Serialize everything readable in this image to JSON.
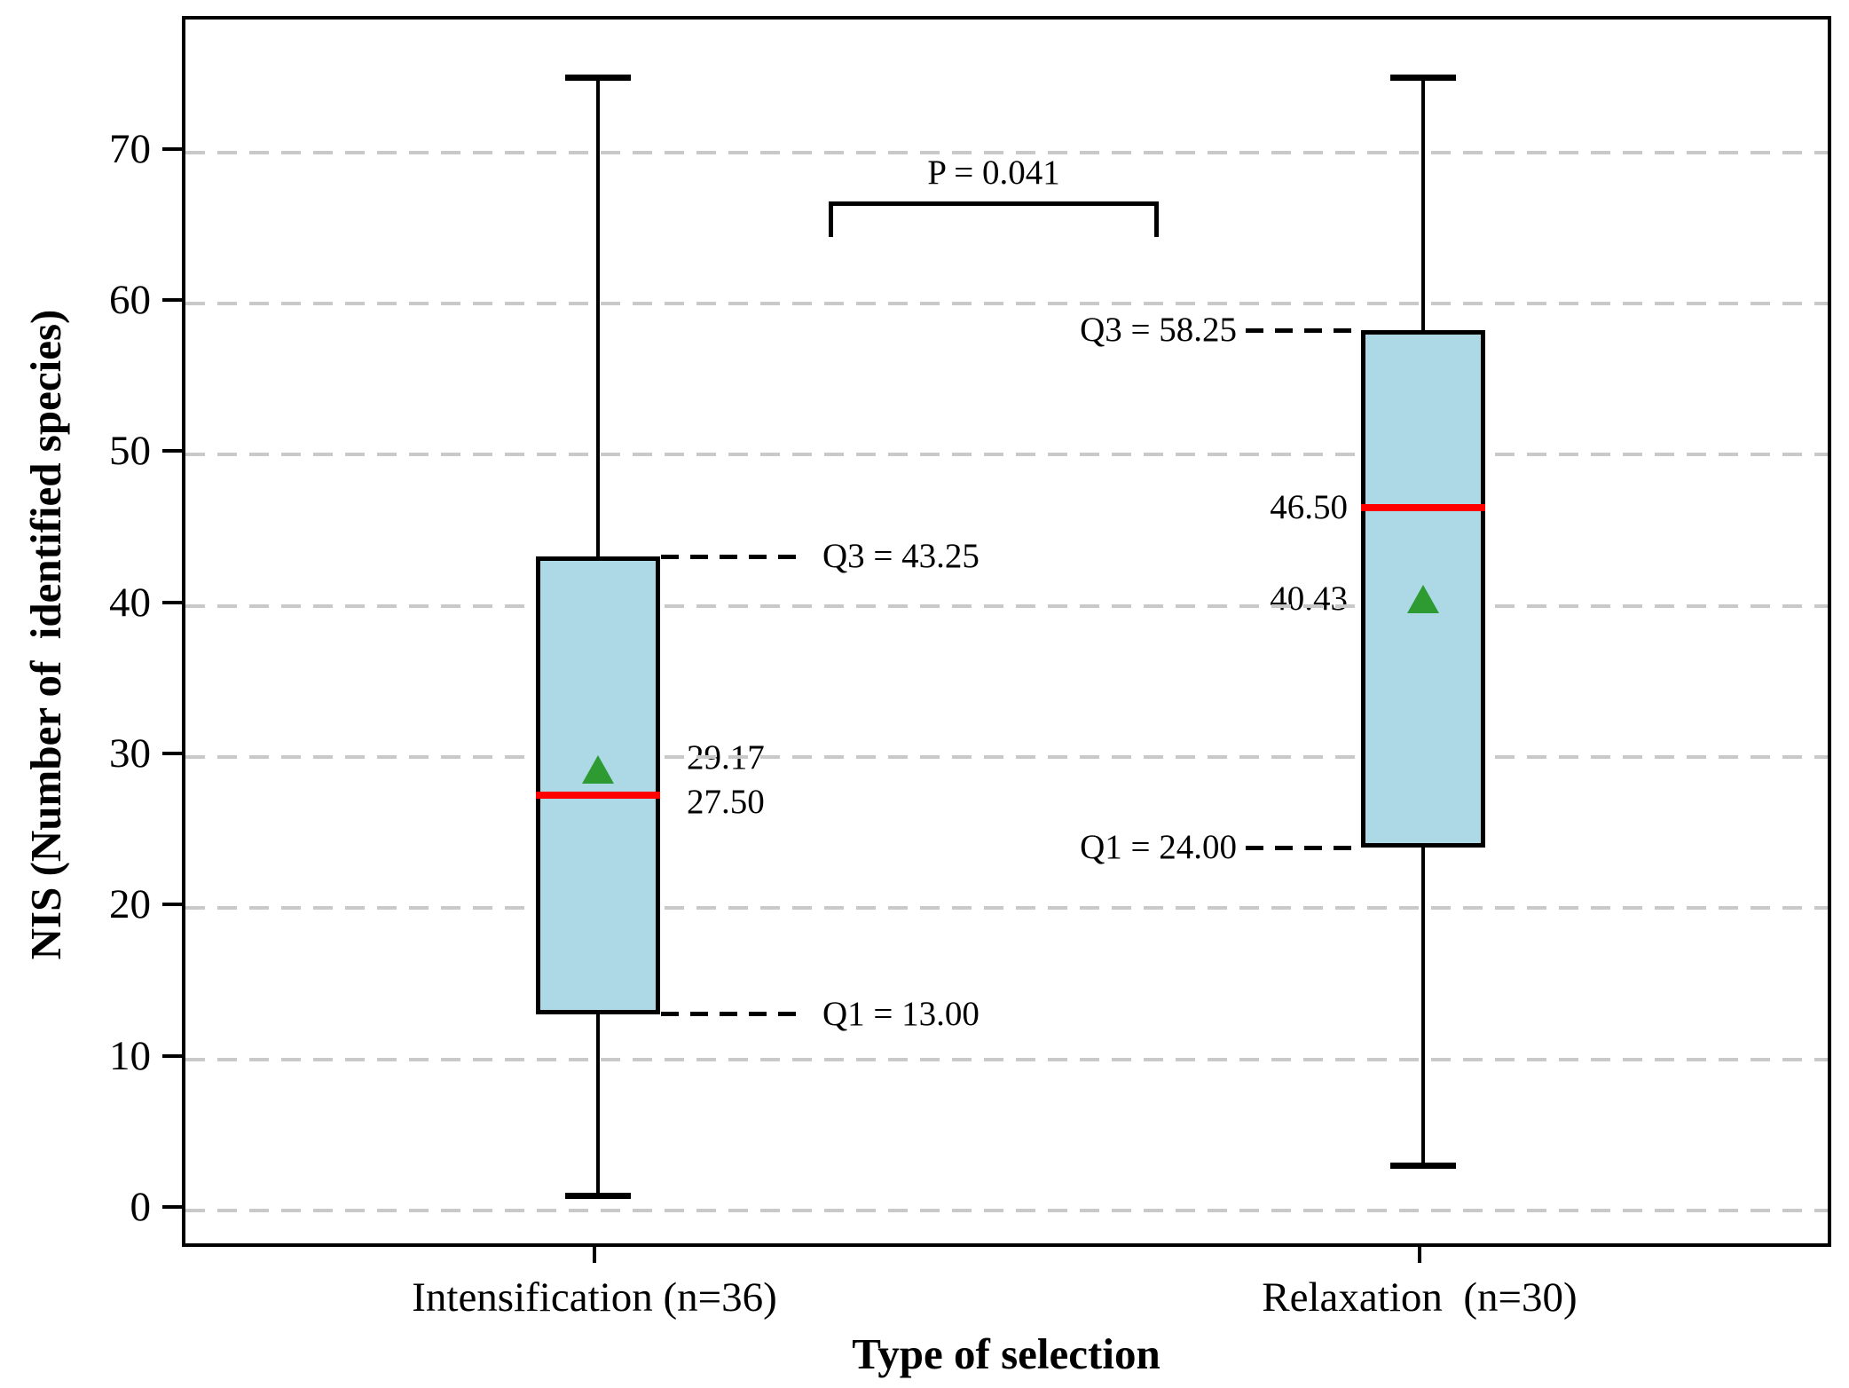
{
  "chart_data": {
    "type": "boxplot",
    "title": "",
    "xlabel": "Type of selection",
    "ylabel": "NIS (Number of  identified species)",
    "yticks": [
      0,
      10,
      20,
      30,
      40,
      50,
      60,
      70
    ],
    "ylim": [
      -2.6,
      78.8
    ],
    "grid": "horizontal dashed lines at every y tick, legend none",
    "significance": {
      "label": "P = 0.041"
    },
    "series": [
      {
        "category": "Intensification (n=36)",
        "whisker_low": 1,
        "q1": 13.0,
        "median": 27.5,
        "mean": 29.17,
        "q3": 43.25,
        "whisker_high": 75,
        "labels": {
          "q3": "Q3 = 43.25",
          "q1": "Q1 = 13.00",
          "mean": "29.17",
          "median": "27.50"
        }
      },
      {
        "category": "Relaxation  (n=30)",
        "whisker_low": 3,
        "q1": 24.0,
        "median": 46.5,
        "mean": 40.43,
        "q3": 58.25,
        "whisker_high": 75,
        "labels": {
          "q3": "Q3 = 58.25",
          "q1": "Q1 = 24.00",
          "mean": "40.43",
          "median": "46.50"
        }
      }
    ],
    "colors": {
      "box_fill": "#ADD8E6",
      "box_border": "#000000",
      "median": "#FF0000",
      "mean": "#2D9B32",
      "grid": "#C9C9C9",
      "axis": "#000000"
    }
  }
}
